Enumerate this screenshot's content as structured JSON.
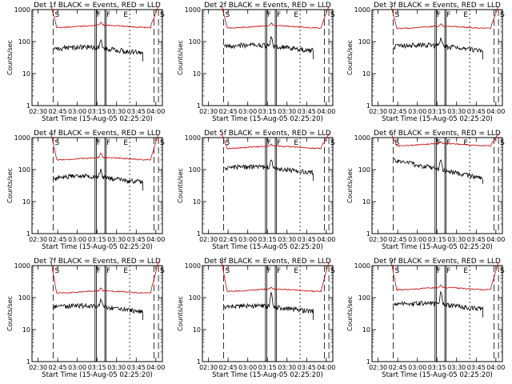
{
  "chart_data": [
    {
      "type": "line",
      "title": "Det 1f BLACK = Events, RED = LLD",
      "xlabel": "Start Time (15-Aug-05 02:25:20)",
      "ylabel": "Counts/sec",
      "yscale": "log",
      "ylim": [
        1,
        1000
      ],
      "yticks": [
        "1",
        "10",
        "100",
        "1000"
      ],
      "xlim": [
        "02:25:20",
        "04:05:00"
      ],
      "xticks": [
        "02:30",
        "02:45",
        "03:00",
        "03:15",
        "03:30",
        "03:45",
        "04:00"
      ],
      "annotations": [
        "S",
        "F",
        "F",
        "E",
        "S"
      ],
      "series": [
        {
          "color": "#cc0000",
          "shape": "plateau",
          "start": "02:40",
          "end": "04:02",
          "level": 300,
          "peak": 380
        },
        {
          "color": "#000000",
          "shape": "wandering",
          "start": "02:42",
          "end": "03:50",
          "level": 60,
          "peak": 110
        }
      ]
    },
    {
      "type": "line",
      "title": "Det 2f BLACK = Events, RED = LLD",
      "xlabel": "Start Time (15-Aug-05 02:25:20)",
      "ylabel": "Counts/sec",
      "yscale": "log",
      "ylim": [
        1,
        1000
      ],
      "yticks": [
        "1",
        "10",
        "100",
        "1000"
      ],
      "xlim": [
        "02:25:20",
        "04:05:00"
      ],
      "xticks": [
        "02:30",
        "02:45",
        "03:00",
        "03:15",
        "03:30",
        "03:45",
        "04:00"
      ],
      "annotations": [
        "S",
        "F",
        "F",
        "E",
        "S"
      ],
      "series": [
        {
          "color": "#cc0000",
          "shape": "plateau",
          "start": "02:40",
          "end": "04:02",
          "level": 290,
          "peak": 360
        },
        {
          "color": "#000000",
          "shape": "wandering",
          "start": "02:42",
          "end": "03:50",
          "level": 70,
          "peak": 130
        }
      ]
    },
    {
      "type": "line",
      "title": "Det 3f BLACK = Events, RED = LLD",
      "xlabel": "Start Time (15-Aug-05 02:25:20)",
      "ylabel": "Counts/sec",
      "yscale": "log",
      "ylim": [
        1,
        1000
      ],
      "yticks": [
        "1",
        "10",
        "100",
        "1000"
      ],
      "xlim": [
        "02:25:20",
        "04:05:00"
      ],
      "xticks": [
        "02:30",
        "02:45",
        "03:00",
        "03:15",
        "03:30",
        "03:45",
        "04:00"
      ],
      "annotations": [
        "S",
        "F",
        "F",
        "E",
        "S"
      ],
      "series": [
        {
          "color": "#cc0000",
          "shape": "plateau",
          "start": "02:40",
          "end": "04:02",
          "level": 280,
          "peak": 330
        },
        {
          "color": "#000000",
          "shape": "wandering",
          "start": "02:42",
          "end": "03:50",
          "level": 70,
          "peak": 120
        }
      ]
    },
    {
      "type": "line",
      "title": "Det 4f BLACK = Events, RED = LLD",
      "xlabel": "Start Time (15-Aug-05 02:25:20)",
      "ylabel": "Counts/sec",
      "yscale": "log",
      "ylim": [
        1,
        1000
      ],
      "yticks": [
        "1",
        "10",
        "100",
        "1000"
      ],
      "xlim": [
        "02:25:20",
        "04:05:00"
      ],
      "xticks": [
        "02:30",
        "02:45",
        "03:00",
        "03:15",
        "03:30",
        "03:45",
        "04:00"
      ],
      "annotations": [
        "S",
        "F",
        "F",
        "E",
        "S"
      ],
      "series": [
        {
          "color": "#cc0000",
          "shape": "plateau",
          "start": "02:40",
          "end": "04:02",
          "level": 220,
          "peak": 320
        },
        {
          "color": "#000000",
          "shape": "wandering",
          "start": "02:42",
          "end": "03:50",
          "level": 55,
          "peak": 100
        }
      ]
    },
    {
      "type": "line",
      "title": "Det 5f BLACK = Events, RED = LLD",
      "xlabel": "Start Time (15-Aug-05 02:25:20)",
      "ylabel": "Counts/sec",
      "yscale": "log",
      "ylim": [
        1,
        1000
      ],
      "yticks": [
        "1",
        "10",
        "100",
        "1000"
      ],
      "xlim": [
        "02:25:20",
        "04:05:00"
      ],
      "xticks": [
        "02:30",
        "02:45",
        "03:00",
        "03:15",
        "03:30",
        "03:45",
        "04:00"
      ],
      "annotations": [
        "S",
        "F",
        "F",
        "E",
        "S"
      ],
      "series": [
        {
          "color": "#cc0000",
          "shape": "plateau",
          "start": "02:40",
          "end": "04:02",
          "level": 500,
          "peak": 600
        },
        {
          "color": "#000000",
          "shape": "wandering",
          "start": "02:42",
          "end": "03:50",
          "level": 110,
          "peak": 200
        }
      ]
    },
    {
      "type": "line",
      "title": "Det 6f BLACK = Events, RED = LLD",
      "xlabel": "Start Time (15-Aug-05 02:25:20)",
      "ylabel": "Counts/sec",
      "yscale": "log",
      "ylim": [
        1,
        1000
      ],
      "yticks": [
        "1",
        "10",
        "100",
        "1000"
      ],
      "xlim": [
        "02:25:20",
        "04:05:00"
      ],
      "xticks": [
        "02:30",
        "02:45",
        "03:00",
        "03:15",
        "03:30",
        "03:45",
        "04:00"
      ],
      "annotations": [
        "S",
        "F",
        "F",
        "E",
        "S"
      ],
      "series": [
        {
          "color": "#cc0000",
          "shape": "plateau",
          "start": "02:40",
          "end": "04:02",
          "level": 600,
          "peak": 700
        },
        {
          "color": "#000000",
          "shape": "decaying",
          "start": "02:42",
          "end": "03:50",
          "level": 90,
          "peak": 200
        }
      ]
    },
    {
      "type": "line",
      "title": "Det 7f BLACK = Events, RED = LLD",
      "xlabel": "Start Time (15-Aug-05 02:25:20)",
      "ylabel": "Counts/sec",
      "yscale": "log",
      "ylim": [
        1,
        1000
      ],
      "yticks": [
        "1",
        "10",
        "100",
        "1000"
      ],
      "xlim": [
        "02:25:20",
        "04:05:00"
      ],
      "xticks": [
        "02:30",
        "02:45",
        "03:00",
        "03:15",
        "03:30",
        "03:45",
        "04:00"
      ],
      "annotations": [
        "S",
        "F",
        "F",
        "E",
        "S"
      ],
      "series": [
        {
          "color": "#cc0000",
          "shape": "plateau",
          "start": "02:40",
          "end": "04:02",
          "level": 150,
          "peak": 190
        },
        {
          "color": "#000000",
          "shape": "wandering",
          "start": "02:42",
          "end": "03:50",
          "level": 50,
          "peak": 80
        }
      ]
    },
    {
      "type": "line",
      "title": "Det 8f BLACK = Events, RED = LLD",
      "xlabel": "Start Time (15-Aug-05 02:25:20)",
      "ylabel": "Counts/sec",
      "yscale": "log",
      "ylim": [
        1,
        1000
      ],
      "yticks": [
        "1",
        "10",
        "100",
        "1000"
      ],
      "xlim": [
        "02:25:20",
        "04:05:00"
      ],
      "xticks": [
        "02:30",
        "02:45",
        "03:00",
        "03:15",
        "03:30",
        "03:45",
        "04:00"
      ],
      "annotations": [
        "S",
        "F",
        "F",
        "E",
        "S"
      ],
      "series": [
        {
          "color": "#cc0000",
          "shape": "plateau",
          "start": "02:40",
          "end": "04:02",
          "level": 170,
          "peak": 200
        },
        {
          "color": "#000000",
          "shape": "wandering",
          "start": "02:42",
          "end": "03:50",
          "level": 50,
          "peak": 140
        }
      ]
    },
    {
      "type": "line",
      "title": "Det 9f BLACK = Events, RED = LLD",
      "xlabel": "Start Time (15-Aug-05 02:25:20)",
      "ylabel": "Counts/sec",
      "yscale": "log",
      "ylim": [
        1,
        1000
      ],
      "yticks": [
        "1",
        "10",
        "100",
        "1000"
      ],
      "xlim": [
        "02:25:20",
        "04:05:00"
      ],
      "xticks": [
        "02:30",
        "02:45",
        "03:00",
        "03:15",
        "03:30",
        "03:45",
        "04:00"
      ],
      "annotations": [
        "S",
        "F",
        "F",
        "E",
        "S"
      ],
      "series": [
        {
          "color": "#cc0000",
          "shape": "plateau",
          "start": "02:40",
          "end": "04:02",
          "level": 190,
          "peak": 230
        },
        {
          "color": "#000000",
          "shape": "wandering",
          "start": "02:42",
          "end": "03:50",
          "level": 60,
          "peak": 150
        }
      ]
    }
  ]
}
